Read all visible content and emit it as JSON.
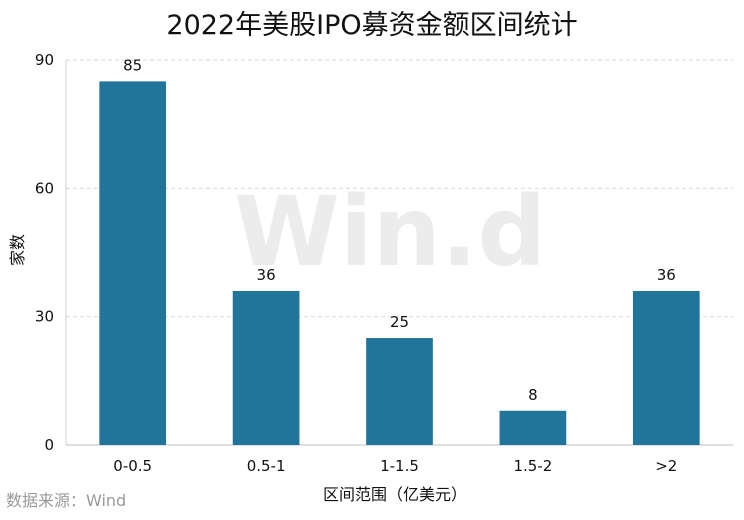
{
  "chart_data": {
    "type": "bar",
    "title": "2022年美股IPO募资金额区间统计",
    "categories": [
      "0-0.5",
      "0.5-1",
      "1-1.5",
      "1.5-2",
      ">2"
    ],
    "values": [
      85,
      36,
      25,
      8,
      36
    ],
    "data_labels": [
      "85",
      "36",
      "25",
      "8",
      "36"
    ],
    "xlabel": "区间范围（亿美元）",
    "ylabel": "家数",
    "ylim": [
      0,
      90
    ],
    "yticks": [
      0,
      30,
      60,
      90
    ],
    "ytick_labels": [
      "0",
      "30",
      "60",
      "90"
    ],
    "grid": true,
    "legend": "none",
    "bar_color": "#21759b",
    "grid_color": "#d9d9d9"
  },
  "source": "数据来源：Wind",
  "watermark": "Win.d"
}
